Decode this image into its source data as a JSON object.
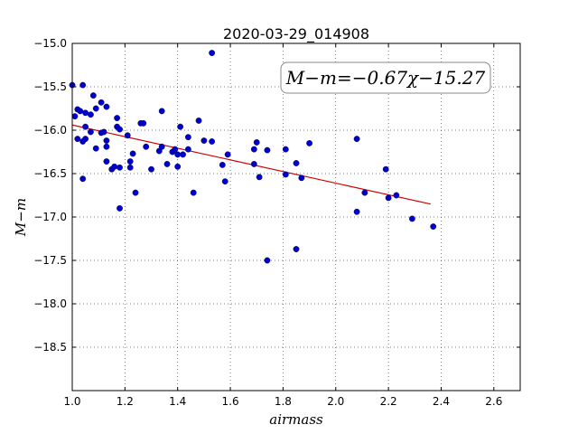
{
  "chart_data": {
    "type": "scatter",
    "title": "2020-03-29_014908",
    "xlabel": "airmass",
    "ylabel": "M−m",
    "xlim": [
      1.0,
      2.7
    ],
    "ylim": [
      -15.0,
      -19.0
    ],
    "y_inverted": true,
    "grid": true,
    "x_ticks": [
      "1.0",
      "1.2",
      "1.4",
      "1.6",
      "1.8",
      "2.0",
      "2.2",
      "2.4",
      "2.6"
    ],
    "y_ticks": [
      "−15.0",
      "−15.5",
      "−16.0",
      "−16.5",
      "−17.0",
      "−17.5",
      "−18.0",
      "−18.5"
    ],
    "annotation": "M−m=−0.67χ−15.27",
    "marker_color": "#0000cc",
    "fit_color": "#cc0000",
    "fit": {
      "slope": -0.67,
      "intercept": -15.27,
      "x_range": [
        1.0,
        2.36
      ]
    },
    "series": [
      {
        "points": [
          [
            1.0,
            -15.48
          ],
          [
            1.01,
            -15.84
          ],
          [
            1.02,
            -15.76
          ],
          [
            1.02,
            -16.1
          ],
          [
            1.03,
            -15.78
          ],
          [
            1.04,
            -15.48
          ],
          [
            1.04,
            -16.13
          ],
          [
            1.04,
            -16.56
          ],
          [
            1.05,
            -15.8
          ],
          [
            1.05,
            -16.1
          ],
          [
            1.05,
            -15.96
          ],
          [
            1.07,
            -15.82
          ],
          [
            1.07,
            -16.02
          ],
          [
            1.08,
            -15.6
          ],
          [
            1.09,
            -15.75
          ],
          [
            1.09,
            -16.21
          ],
          [
            1.11,
            -15.68
          ],
          [
            1.11,
            -16.03
          ],
          [
            1.12,
            -16.02
          ],
          [
            1.13,
            -15.73
          ],
          [
            1.13,
            -16.12
          ],
          [
            1.13,
            -16.19
          ],
          [
            1.13,
            -16.36
          ],
          [
            1.15,
            -16.45
          ],
          [
            1.16,
            -16.42
          ],
          [
            1.17,
            -15.86
          ],
          [
            1.17,
            -15.96
          ],
          [
            1.18,
            -15.99
          ],
          [
            1.18,
            -16.43
          ],
          [
            1.18,
            -16.9
          ],
          [
            1.21,
            -16.06
          ],
          [
            1.22,
            -16.36
          ],
          [
            1.22,
            -16.43
          ],
          [
            1.23,
            -16.27
          ],
          [
            1.24,
            -16.72
          ],
          [
            1.26,
            -15.92
          ],
          [
            1.27,
            -15.92
          ],
          [
            1.28,
            -16.19
          ],
          [
            1.3,
            -16.45
          ],
          [
            1.33,
            -16.24
          ],
          [
            1.34,
            -16.19
          ],
          [
            1.34,
            -15.78
          ],
          [
            1.36,
            -16.39
          ],
          [
            1.38,
            -16.25
          ],
          [
            1.39,
            -16.22
          ],
          [
            1.4,
            -16.28
          ],
          [
            1.4,
            -16.42
          ],
          [
            1.41,
            -15.96
          ],
          [
            1.42,
            -16.28
          ],
          [
            1.44,
            -16.08
          ],
          [
            1.44,
            -16.22
          ],
          [
            1.46,
            -16.72
          ],
          [
            1.48,
            -15.89
          ],
          [
            1.5,
            -16.12
          ],
          [
            1.53,
            -15.11
          ],
          [
            1.53,
            -16.13
          ],
          [
            1.57,
            -16.4
          ],
          [
            1.58,
            -16.59
          ],
          [
            1.59,
            -16.28
          ],
          [
            1.69,
            -16.22
          ],
          [
            1.69,
            -16.39
          ],
          [
            1.7,
            -16.14
          ],
          [
            1.71,
            -16.54
          ],
          [
            1.74,
            -16.23
          ],
          [
            1.74,
            -17.5
          ],
          [
            1.81,
            -16.51
          ],
          [
            1.81,
            -16.22
          ],
          [
            1.85,
            -16.38
          ],
          [
            1.85,
            -17.37
          ],
          [
            1.87,
            -16.55
          ],
          [
            1.9,
            -16.15
          ],
          [
            2.08,
            -16.1
          ],
          [
            2.08,
            -16.94
          ],
          [
            2.11,
            -16.72
          ],
          [
            2.19,
            -16.45
          ],
          [
            2.2,
            -16.78
          ],
          [
            2.23,
            -16.75
          ],
          [
            2.29,
            -17.02
          ],
          [
            2.37,
            -17.11
          ]
        ]
      }
    ]
  }
}
